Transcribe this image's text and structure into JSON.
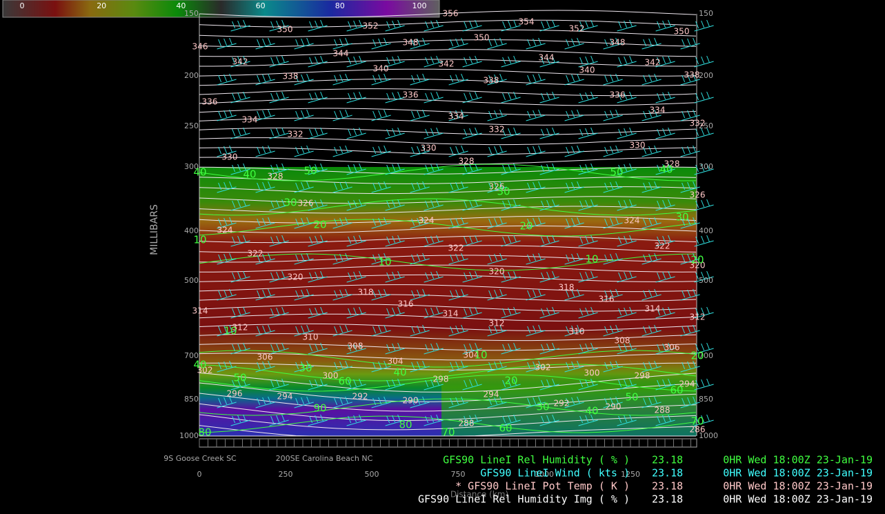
{
  "colorbar": {
    "ticks": [
      0,
      20,
      40,
      60,
      80,
      100
    ]
  },
  "y_axis": {
    "title": "MILLIBARS",
    "left_ticks": [
      150,
      200,
      250,
      300,
      400,
      500,
      700,
      850,
      1000
    ],
    "right_ticks": [
      150,
      200,
      250,
      300,
      400,
      500,
      700,
      850,
      1000
    ]
  },
  "x_axis": {
    "ticks": [
      0,
      250,
      500,
      750,
      1000,
      1250
    ],
    "title": "Distance (km)"
  },
  "locations": [
    "9S Goose Creek SC",
    "200SE Carolina Beach NC"
  ],
  "legend": [
    {
      "text": "GFS90 LineI Rel Humidity ( % )",
      "value": 23.18,
      "time": "0HR Wed 18:00Z 23-Jan-19"
    },
    {
      "text": "GFS90 LineI Wind ( kts )",
      "value": 23.18,
      "time": "0HR Wed 18:00Z 23-Jan-19"
    },
    {
      "text": "* GFS90 LineI Pot Temp ( K )",
      "value": 23.18,
      "time": "0HR Wed 18:00Z 23-Jan-19"
    },
    {
      "text": "GFS90 LineI Rel Humidity Img ( % )",
      "value": 23.18,
      "time": "0HR Wed 18:00Z 23-Jan-19"
    }
  ],
  "pot_temp_labels": [
    356,
    350,
    352,
    354,
    352,
    350,
    346,
    348,
    350,
    348,
    344,
    342,
    340,
    342,
    344,
    340,
    342,
    338,
    338,
    338,
    336,
    336,
    336,
    334,
    334,
    334,
    332,
    332,
    332,
    330,
    330,
    330,
    328,
    328,
    328,
    326,
    326,
    326,
    324,
    324,
    324,
    322,
    322,
    322,
    320,
    320,
    320,
    318,
    318,
    316,
    316,
    314,
    314,
    314,
    312,
    312,
    312,
    310,
    310,
    308,
    308,
    306,
    306,
    304,
    304,
    302,
    302,
    300,
    300,
    298,
    298,
    296,
    294,
    294,
    294,
    292,
    292,
    290,
    290,
    288,
    288,
    286
  ],
  "rh_labels": [
    40,
    40,
    50,
    50,
    40,
    30,
    30,
    20,
    20,
    30,
    10,
    10,
    10,
    20,
    10,
    40,
    30,
    40,
    10,
    20,
    50,
    60,
    20,
    60,
    50,
    90,
    30,
    40,
    80,
    70,
    80,
    70,
    60
  ]
}
